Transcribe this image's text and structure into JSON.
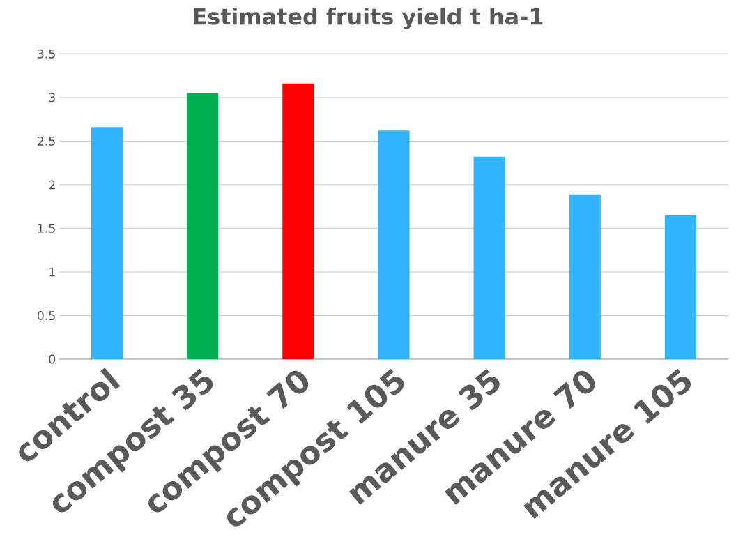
{
  "chart_data": {
    "type": "bar",
    "title": "Estimated fruits yield t ha-1",
    "categories": [
      "control",
      "compost 35",
      "compost 70",
      "compost 105",
      "manure 35",
      "manure 70",
      "manure 105"
    ],
    "values": [
      2.66,
      3.05,
      3.16,
      2.62,
      2.32,
      1.89,
      1.65
    ],
    "colors": [
      "#33b4ff",
      "#00b050",
      "#ff0000",
      "#33b4ff",
      "#33b4ff",
      "#33b4ff",
      "#33b4ff"
    ],
    "ylim": [
      0,
      3.5
    ],
    "yticks": [
      0,
      0.5,
      1,
      1.5,
      2,
      2.5,
      3,
      3.5
    ],
    "grid": "y"
  }
}
